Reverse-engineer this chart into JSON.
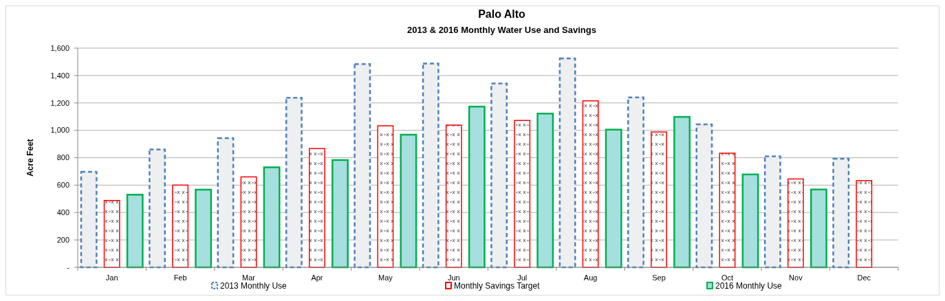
{
  "chart_data": {
    "type": "bar",
    "title": "Palo Alto",
    "subtitle": "2013 & 2016 Monthly Water Use and Savings",
    "ylabel": "Acre Feet",
    "categories": [
      "Jan",
      "Feb",
      "Mar",
      "Apr",
      "May",
      "Jun",
      "Jul",
      "Aug",
      "Sep",
      "Oct",
      "Nov",
      "Dec"
    ],
    "series": [
      {
        "name": "2013 Monthly Use",
        "color": "#4f81bd",
        "line_style": "dashed",
        "values": [
          697,
          860,
          943,
          1238,
          1483,
          1487,
          1342,
          1525,
          1240,
          1043,
          810,
          792
        ]
      },
      {
        "name": "Monthly Savings Target",
        "color": "#ff0000",
        "line_style": "solid",
        "values": [
          488,
          600,
          660,
          867,
          1033,
          1038,
          1072,
          1215,
          988,
          833,
          645,
          633
        ]
      },
      {
        "name": "2016 Monthly Use",
        "color": "#00b050",
        "line_style": "solid",
        "values": [
          530,
          567,
          730,
          783,
          968,
          1173,
          1122,
          1005,
          1098,
          678,
          568,
          null
        ]
      }
    ],
    "ylim": [
      0,
      1600
    ],
    "yticks": [
      {
        "value": 0,
        "label": "-"
      },
      200,
      400,
      600,
      800,
      {
        "value": 1000,
        "label": "1,000"
      },
      {
        "value": 1200,
        "label": "1,200"
      },
      {
        "value": 1400,
        "label": "1,400"
      },
      {
        "value": 1600,
        "label": "1,600"
      }
    ],
    "grid": "y",
    "legend": "bottom"
  }
}
